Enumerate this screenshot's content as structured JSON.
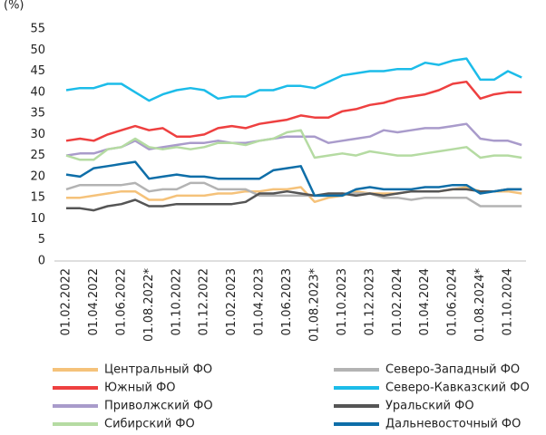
{
  "chart_data": {
    "type": "line",
    "y_label": "(%)",
    "categories": [
      "01.02.2022",
      null,
      "01.04.2022",
      null,
      "01.06.2022",
      null,
      "01.08.2022*",
      null,
      "01.10.2022",
      null,
      "01.12.2022",
      null,
      "01.02.2023",
      null,
      "01.04.2023",
      null,
      "01.06.2023",
      null,
      "01.08.2023*",
      null,
      "01.10.2023",
      null,
      "01.12.2023",
      null,
      "01.02.2024",
      null,
      "01.04.2024",
      null,
      "01.06.2024",
      null,
      "01.08.2024*",
      null,
      "01.10.2024",
      null
    ],
    "ylim": [
      0,
      55
    ],
    "yticks": [
      0,
      5,
      10,
      15,
      20,
      25,
      30,
      35,
      40,
      45,
      50,
      55
    ],
    "grid": false,
    "series": [
      {
        "name": "Центральный ФО",
        "color": "#f5c27a",
        "values": [
          15,
          15,
          15.5,
          16,
          16.5,
          16.5,
          14.5,
          14.5,
          15.5,
          15.5,
          15.5,
          16,
          16,
          16.5,
          16.5,
          17,
          17,
          17.5,
          14,
          15,
          15.5,
          16.5,
          16,
          16,
          16,
          16.5,
          16.5,
          16.5,
          17,
          17.5,
          16.5,
          16.5,
          16.5,
          16
        ]
      },
      {
        "name": "Северо-Западный ФО",
        "color": "#b3b3b3",
        "values": [
          17,
          18,
          18,
          18,
          18,
          18.5,
          16.5,
          17,
          17,
          18.5,
          18.5,
          17,
          17,
          17,
          15.5,
          15.5,
          15.5,
          15.5,
          15.5,
          15.5,
          16,
          16,
          16,
          15,
          15,
          14.5,
          15,
          15,
          15,
          15,
          13,
          13,
          13,
          13
        ]
      },
      {
        "name": "Южный ФО",
        "color": "#ee4040",
        "values": [
          28.5,
          29,
          28.5,
          30,
          31,
          32,
          31,
          31.5,
          29.5,
          29.5,
          30,
          31.5,
          32,
          31.5,
          32.5,
          33,
          33.5,
          34.5,
          34,
          34,
          35.5,
          36,
          37,
          37.5,
          38.5,
          39,
          39.5,
          40.5,
          42,
          42.5,
          38.5,
          39.5,
          40,
          40
        ]
      },
      {
        "name": "Северо-Кавказский ФО",
        "color": "#1cbce9",
        "values": [
          40.5,
          41,
          41,
          42,
          42,
          40,
          38,
          39.5,
          40.5,
          41,
          40.5,
          38.5,
          39,
          39,
          40.5,
          40.5,
          41.5,
          41.5,
          41,
          42.5,
          44,
          44.5,
          45,
          45,
          45.5,
          45.5,
          47,
          46.5,
          47.5,
          48,
          43,
          43,
          45,
          43.5
        ]
      },
      {
        "name": "Приволжский ФО",
        "color": "#a99bcb",
        "values": [
          25,
          25.5,
          25.5,
          26.5,
          27,
          28.5,
          26.5,
          27,
          27.5,
          28,
          28,
          28.5,
          28,
          28,
          28.5,
          29,
          29.5,
          29.5,
          29.5,
          28,
          28.5,
          29,
          29.5,
          31,
          30.5,
          31,
          31.5,
          31.5,
          32,
          32.5,
          29,
          28.5,
          28.5,
          27.5
        ]
      },
      {
        "name": "Уральский ФО",
        "color": "#555555",
        "values": [
          12.5,
          12.5,
          12,
          13,
          13.5,
          14.5,
          13,
          13,
          13.5,
          13.5,
          13.5,
          13.5,
          13.5,
          14,
          16,
          16,
          16.5,
          16,
          15.5,
          16,
          16,
          15.5,
          16,
          15.5,
          16,
          16.5,
          16.5,
          16.5,
          17,
          17,
          16.5,
          16.5,
          17,
          17
        ]
      },
      {
        "name": "Сибирский ФО",
        "color": "#b5dba2",
        "values": [
          25,
          24,
          24,
          26.5,
          27,
          29,
          27,
          26.5,
          27,
          26.5,
          27,
          28,
          28,
          27.5,
          28.5,
          29,
          30.5,
          31,
          24.5,
          25,
          25.5,
          25,
          26,
          25.5,
          25,
          25,
          25.5,
          26,
          26.5,
          27,
          24.5,
          25,
          25,
          24.5
        ]
      },
      {
        "name": "Дальневосточный ФО",
        "color": "#0e6ea8",
        "values": [
          20.5,
          20,
          22,
          22.5,
          23,
          23.5,
          19.5,
          20,
          20.5,
          20,
          20,
          19.5,
          19.5,
          19.5,
          19.5,
          21.5,
          22,
          22.5,
          15.5,
          15.5,
          15.5,
          17,
          17.5,
          17,
          17,
          17,
          17.5,
          17.5,
          18,
          18,
          16,
          16.5,
          17,
          17
        ]
      }
    ]
  }
}
